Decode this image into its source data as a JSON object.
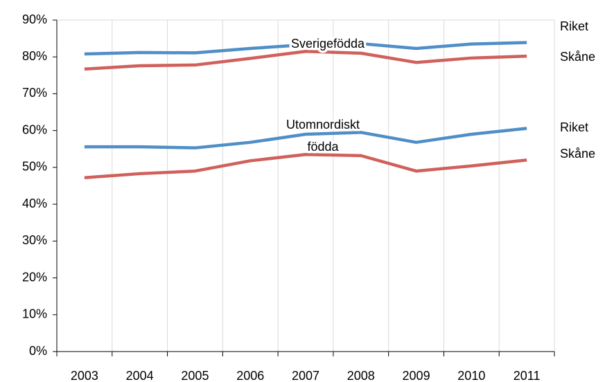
{
  "chart_data": {
    "type": "line",
    "categories": [
      "2003",
      "2004",
      "2005",
      "2006",
      "2007",
      "2008",
      "2009",
      "2010",
      "2011"
    ],
    "series": [
      {
        "name": "Riket",
        "color": "#4f8ec6",
        "values": [
          80.8,
          81.2,
          81.1,
          82.3,
          83.3,
          83.6,
          82.3,
          83.5,
          83.9
        ]
      },
      {
        "name": "Skåne",
        "color": "#d0605c",
        "values": [
          76.7,
          77.6,
          77.8,
          79.6,
          81.5,
          81.0,
          78.5,
          79.7,
          80.2
        ]
      },
      {
        "name": "Riket",
        "color": "#4f8ec6",
        "values": [
          55.6,
          55.6,
          55.3,
          56.8,
          59.0,
          59.5,
          56.8,
          59.0,
          60.6
        ]
      },
      {
        "name": "Skåne",
        "color": "#d0605c",
        "values": [
          47.2,
          48.3,
          49.0,
          51.8,
          53.5,
          53.2,
          49.0,
          50.4,
          52.0
        ]
      }
    ],
    "annotations": [
      [
        "Sverigefödda"
      ],
      [
        "Utomnordiskt",
        "födda"
      ]
    ],
    "ylim": [
      0,
      90
    ],
    "yticks": [
      {
        "value": 0,
        "label": "0%"
      },
      {
        "value": 10,
        "label": "10%"
      },
      {
        "value": 20,
        "label": "20%"
      },
      {
        "value": 30,
        "label": "30%"
      },
      {
        "value": 40,
        "label": "40%"
      },
      {
        "value": 50,
        "label": "50%"
      },
      {
        "value": 60,
        "label": "60%"
      },
      {
        "value": 70,
        "label": "70%"
      },
      {
        "value": 80,
        "label": "80%"
      },
      {
        "value": 90,
        "label": "90%"
      }
    ],
    "grid": "x"
  }
}
